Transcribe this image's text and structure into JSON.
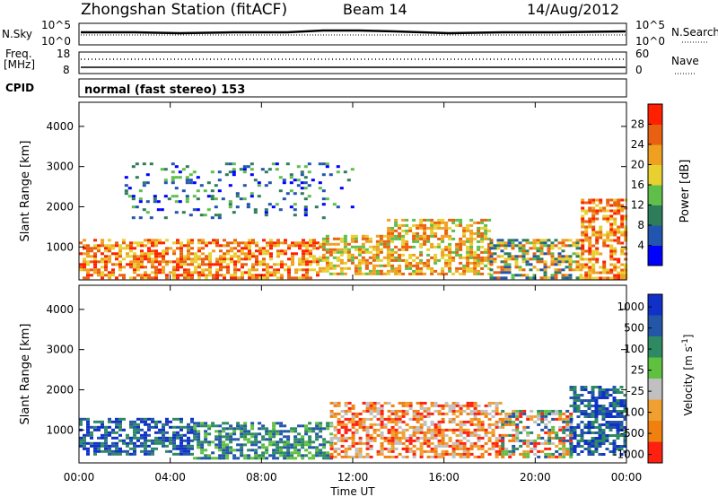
{
  "header": {
    "station": "Zhongshan Station (fitACF)",
    "beam": "Beam 14",
    "date": "14/Aug/2012",
    "cpid_label": "CPID",
    "cpid_text": "normal (fast stereo) 153"
  },
  "noise_panel": {
    "left_label": "N.Sky",
    "right_label": "N.Search",
    "tick_top": "10^5",
    "tick_bottom": "10^0"
  },
  "freq_panel": {
    "left_label_1": "Freq.",
    "left_label_2": "[MHz]",
    "left_tick_top": "18",
    "left_tick_bottom": "8",
    "right_label": "Nave",
    "right_tick_top": "60",
    "right_tick_bottom": "0"
  },
  "x_axis": {
    "label": "Time UT",
    "ticks": [
      "00:00",
      "04:00",
      "08:00",
      "12:00",
      "16:00",
      "20:00",
      "00:00"
    ]
  },
  "power_colorbar": {
    "label": "Power [dB]",
    "ticks": [
      "4",
      "8",
      "12",
      "16",
      "20",
      "24",
      "28"
    ],
    "colors": [
      "#0000ff",
      "#2255b0",
      "#2e7d5a",
      "#5fbf4a",
      "#e8d030",
      "#f0a020",
      "#e86010",
      "#ff2000"
    ]
  },
  "velocity_colorbar": {
    "label": "Velocity [m s",
    "label_sup": "-1",
    "label_end": "]",
    "ticks": [
      "1000",
      "500",
      "100",
      "25",
      "-25",
      "-100",
      "-500",
      "-1000"
    ],
    "colors": [
      "#1030c8",
      "#2456a8",
      "#2e8a62",
      "#60c040",
      "#c0c0c0",
      "#f0a030",
      "#f08010",
      "#ff2010"
    ]
  },
  "chart_data": [
    {
      "type": "heatmap",
      "title": "Power",
      "ylabel": "Slant Range [km]",
      "xlabel": "Time UT",
      "x_ticks": [
        "00:00",
        "04:00",
        "08:00",
        "12:00",
        "16:00",
        "20:00",
        "00:00"
      ],
      "y_ticks": [
        1000,
        2000,
        3000,
        4000
      ],
      "ylim": [
        180,
        4600
      ],
      "xlim_hours": [
        0,
        24
      ],
      "colorbar_range": [
        0,
        32
      ],
      "clusters": [
        {
          "t0": 0.0,
          "t1": 10.5,
          "r0": 250,
          "r1": 1200,
          "level": "high"
        },
        {
          "t0": 10.5,
          "t1": 13.5,
          "r0": 300,
          "r1": 1300,
          "level": "medium"
        },
        {
          "t0": 13.5,
          "t1": 18.0,
          "r0": 300,
          "r1": 1700,
          "level": "medium"
        },
        {
          "t0": 18.0,
          "t1": 22.0,
          "r0": 250,
          "r1": 1200,
          "level": "mixed"
        },
        {
          "t0": 22.0,
          "t1": 24.0,
          "r0": 250,
          "r1": 2200,
          "level": "high"
        },
        {
          "t0": 2.0,
          "t1": 12.0,
          "r0": 1700,
          "r1": 3100,
          "level": "low"
        }
      ]
    },
    {
      "type": "heatmap",
      "title": "Velocity",
      "ylabel": "Slant Range [km]",
      "xlabel": "Time UT",
      "x_ticks": [
        "00:00",
        "04:00",
        "08:00",
        "12:00",
        "16:00",
        "20:00",
        "00:00"
      ],
      "y_ticks": [
        1000,
        2000,
        3000,
        4000
      ],
      "ylim": [
        180,
        4600
      ],
      "xlim_hours": [
        0,
        24
      ],
      "colorbar_range": [
        -1000,
        1000
      ],
      "clusters": [
        {
          "t0": 0.0,
          "t1": 5.0,
          "r0": 400,
          "r1": 1300,
          "level": "positive"
        },
        {
          "t0": 5.0,
          "t1": 11.0,
          "r0": 300,
          "r1": 1200,
          "level": "slightly-positive"
        },
        {
          "t0": 11.0,
          "t1": 18.5,
          "r0": 300,
          "r1": 1700,
          "level": "negative"
        },
        {
          "t0": 18.5,
          "t1": 21.5,
          "r0": 300,
          "r1": 1500,
          "level": "mixed"
        },
        {
          "t0": 21.5,
          "t1": 24.0,
          "r0": 400,
          "r1": 2100,
          "level": "positive"
        }
      ]
    }
  ]
}
